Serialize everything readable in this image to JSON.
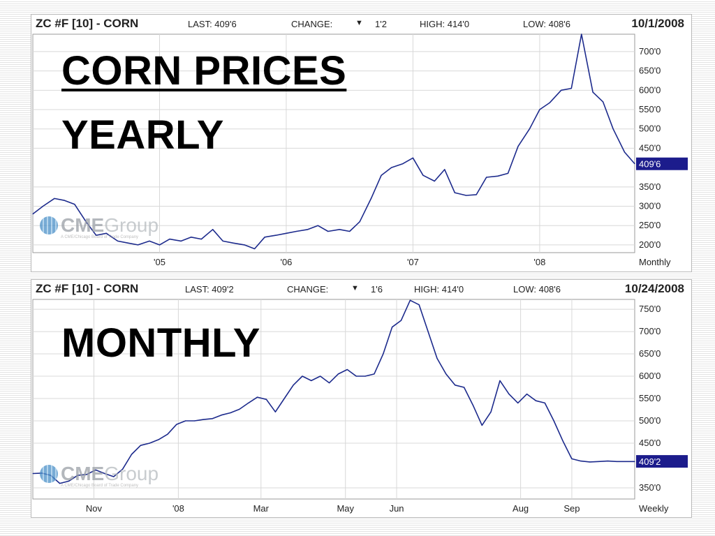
{
  "charts": [
    {
      "header": {
        "symbol": "ZC #F [10] - CORN",
        "last": "LAST: 409'6",
        "change_label": "CHANGE:",
        "change_value": "1'2",
        "change_arrow_icon": "down-triangle",
        "high": "HIGH: 414'0",
        "low": "LOW: 408'6",
        "date": "10/1/2008"
      },
      "logo": {
        "cme": "CME",
        "group": "Group",
        "sub": "A CME/Chicago Board of Trade Company"
      }
    },
    {
      "header": {
        "symbol": "ZC #F [10] - CORN",
        "last": "LAST: 409'2",
        "change_label": "CHANGE:",
        "change_value": "1'6",
        "change_arrow_icon": "down-triangle",
        "high": "HIGH: 414'0",
        "low": "LOW: 408'6",
        "date": "10/24/2008"
      },
      "logo": {
        "cme": "CME",
        "group": "Group",
        "sub": "A CME/Chicago Board of Trade Company"
      }
    }
  ],
  "overlay": {
    "title": "CORN PRICES",
    "yearly": "YEARLY",
    "monthly": "MONTHLY"
  },
  "colors": {
    "line": "#1c2a8c",
    "last_box": "#1c1c8c",
    "grid": "#d8d8d8"
  },
  "chart_data": [
    {
      "type": "line",
      "periodicity": "Monthly",
      "ylim": [
        180,
        745
      ],
      "y_ticks": [
        200,
        250,
        300,
        350,
        450,
        500,
        550,
        600,
        650,
        700
      ],
      "y_tick_labels": [
        "200'0",
        "250'0",
        "300'0",
        "350'0",
        "450'0",
        "500'0",
        "550'0",
        "600'0",
        "650'0",
        "700'0"
      ],
      "last_label": "409'6",
      "last_value": 409.75,
      "xlim": [
        2004.0,
        2008.75
      ],
      "x_ticks": [
        2005,
        2006,
        2007,
        2008
      ],
      "x_tick_labels": [
        "'05",
        "'06",
        "'07",
        "'08"
      ],
      "series": [
        {
          "x": [
            2004.0,
            2004.08,
            2004.17,
            2004.25,
            2004.33,
            2004.42,
            2004.5,
            2004.58,
            2004.67,
            2004.75,
            2004.83,
            2004.92,
            2005.0,
            2005.08,
            2005.17,
            2005.25,
            2005.33,
            2005.42,
            2005.5,
            2005.58,
            2005.67,
            2005.75,
            2005.83,
            2005.92,
            2006.0,
            2006.08,
            2006.17,
            2006.25,
            2006.33,
            2006.42,
            2006.5,
            2006.58,
            2006.67,
            2006.75,
            2006.83,
            2006.92,
            2007.0,
            2007.08,
            2007.17,
            2007.25,
            2007.33,
            2007.42,
            2007.5,
            2007.58,
            2007.67,
            2007.75,
            2007.83,
            2007.92,
            2008.0,
            2008.08,
            2008.17,
            2008.25,
            2008.33,
            2008.42,
            2008.5,
            2008.58,
            2008.67,
            2008.75
          ],
          "values": [
            280,
            300,
            320,
            315,
            305,
            260,
            225,
            230,
            210,
            205,
            200,
            210,
            200,
            215,
            210,
            220,
            215,
            240,
            210,
            205,
            200,
            190,
            220,
            225,
            230,
            235,
            240,
            250,
            235,
            240,
            235,
            260,
            320,
            380,
            400,
            410,
            425,
            380,
            365,
            395,
            335,
            328,
            330,
            375,
            378,
            385,
            455,
            500,
            550,
            568,
            600,
            605,
            745,
            595,
            570,
            500,
            440,
            410
          ]
        }
      ]
    },
    {
      "type": "line",
      "periodicity": "Weekly",
      "ylim": [
        325,
        772
      ],
      "y_ticks": [
        350,
        450,
        500,
        550,
        600,
        650,
        700,
        750
      ],
      "y_tick_labels": [
        "350'0",
        "450'0",
        "500'0",
        "550'0",
        "600'0",
        "650'0",
        "700'0",
        "750'0"
      ],
      "last_label": "409'2",
      "last_value": 409.25,
      "x_ticks": [
        6.8,
        16.2,
        25.4,
        34.8,
        40.5,
        54.3,
        60.0
      ],
      "x_tick_labels": [
        "Nov",
        "'08",
        "Mar",
        "May",
        "Jun",
        "Aug",
        "Sep"
      ],
      "xlim": [
        0,
        67
      ],
      "series": [
        {
          "x": [
            0,
            1,
            2,
            3,
            4,
            5,
            6,
            7,
            8,
            9,
            10,
            11,
            12,
            13,
            14,
            15,
            16,
            17,
            18,
            19,
            20,
            21,
            22,
            23,
            24,
            25,
            26,
            27,
            28,
            29,
            30,
            31,
            32,
            33,
            34,
            35,
            36,
            37,
            38,
            39,
            40,
            41,
            42,
            43,
            44,
            45,
            46,
            47,
            48,
            49,
            50,
            51,
            52,
            53,
            54,
            55,
            56,
            57,
            58,
            59,
            60,
            61,
            62,
            63,
            64,
            65,
            66,
            67
          ],
          "values": [
            382,
            383,
            378,
            360,
            365,
            378,
            380,
            390,
            382,
            375,
            392,
            425,
            445,
            450,
            458,
            470,
            492,
            500,
            500,
            503,
            505,
            513,
            518,
            526,
            540,
            553,
            548,
            520,
            550,
            580,
            600,
            590,
            600,
            585,
            605,
            615,
            600,
            600,
            605,
            650,
            710,
            725,
            770,
            760,
            700,
            640,
            605,
            580,
            575,
            535,
            490,
            520,
            590,
            560,
            540,
            560,
            545,
            540,
            500,
            455,
            415,
            410,
            408,
            409,
            410,
            409,
            409,
            409
          ]
        }
      ]
    }
  ]
}
